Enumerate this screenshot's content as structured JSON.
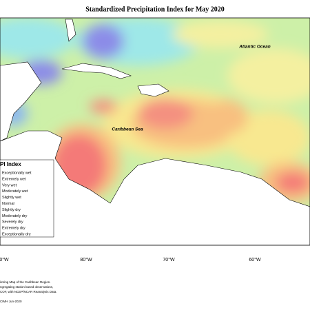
{
  "title": "Standardized Precipitation Index for May 2020",
  "map_labels": [
    "Atlantic Ocean",
    "Caribbean Sea"
  ],
  "legend": {
    "title": "PI Index",
    "items": [
      "Exceptionally wet",
      "Extremely wet",
      "Very wet",
      "Moderately wet",
      "Slightly wet",
      "Normal",
      "Slightly dry",
      "Moderately dry",
      "Severely dry",
      "Extremely dry",
      "Exceptionally dry"
    ]
  },
  "longitude_labels": [
    "0°W",
    "80°W",
    "70°W",
    "60°W"
  ],
  "footer": [
    "itoring Map of the Caribbean Region.",
    "ngregating station based observations,",
    "COF, with NCEP/NCAR Reanalysis Data.",
    "CIMH Jun-2020"
  ]
}
